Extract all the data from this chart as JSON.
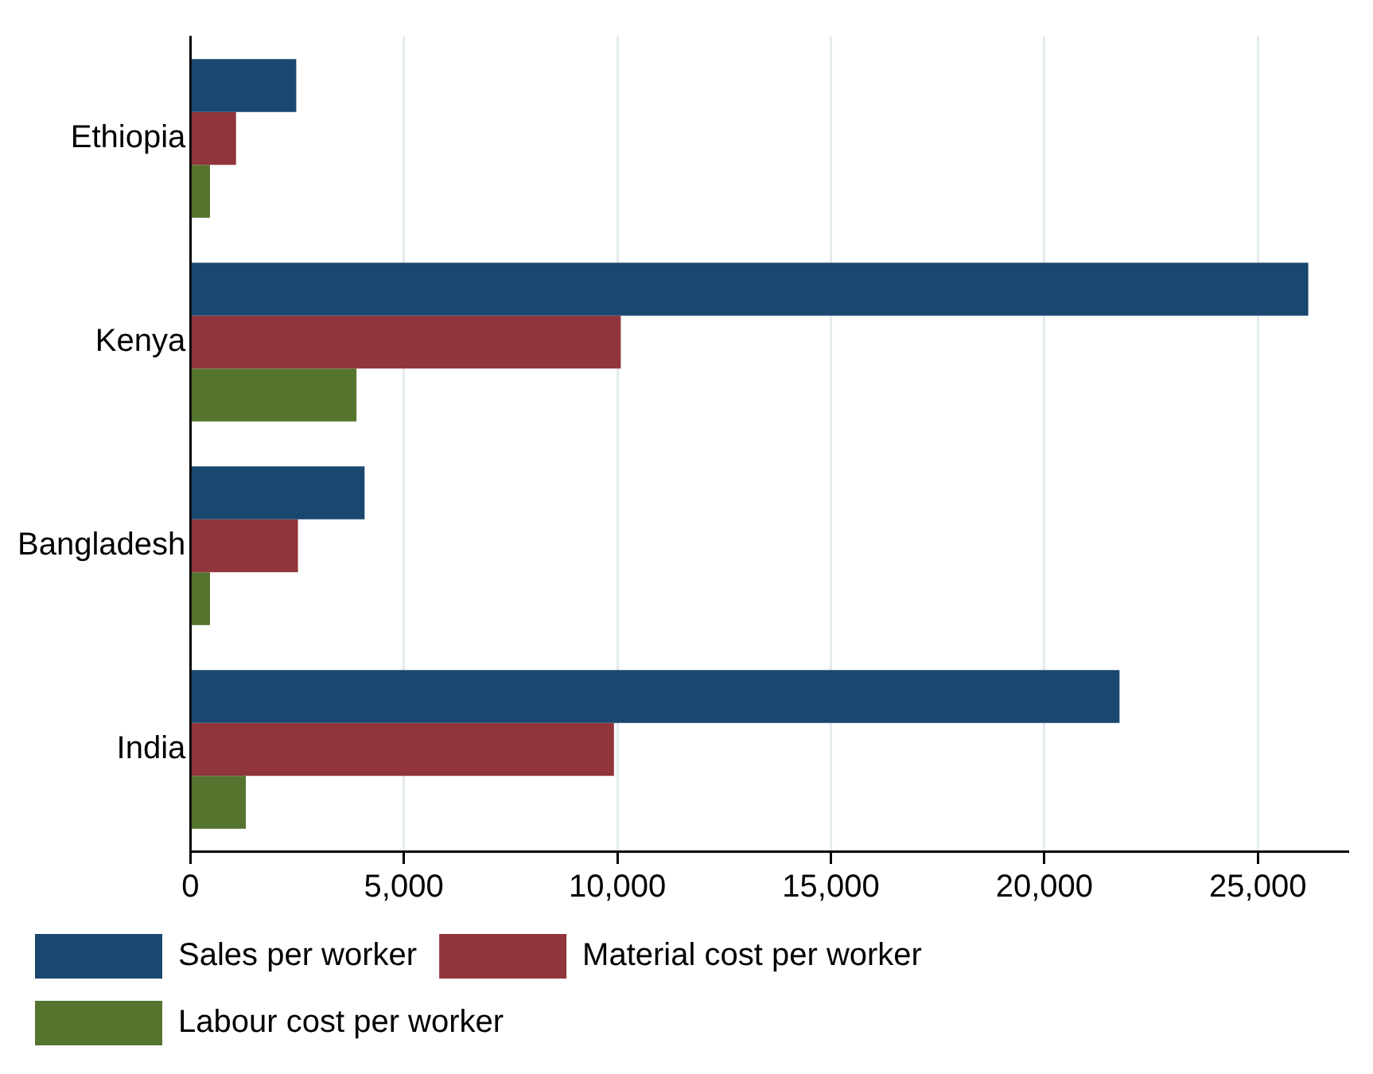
{
  "chart_data": {
    "type": "bar",
    "orientation": "horizontal",
    "categories": [
      "Ethiopia",
      "Kenya",
      "Bangladesh",
      "India"
    ],
    "series": [
      {
        "name": "Sales per worker",
        "color": "#1a476f",
        "values": [
          2480,
          26180,
          4080,
          21760
        ]
      },
      {
        "name": "Material cost per worker",
        "color": "#90353b",
        "values": [
          1070,
          10080,
          2520,
          9920
        ]
      },
      {
        "name": "Labour cost per worker",
        "color": "#55752f",
        "values": [
          460,
          3890,
          460,
          1300
        ]
      }
    ],
    "xlim": [
      0,
      27100
    ],
    "xticks": [
      {
        "value": 0,
        "label": "0"
      },
      {
        "value": 5000,
        "label": "5,000"
      },
      {
        "value": 10000,
        "label": "10,000"
      },
      {
        "value": 15000,
        "label": "15,000"
      },
      {
        "value": 20000,
        "label": "20,000"
      },
      {
        "value": 25000,
        "label": "25,000"
      }
    ],
    "grid": "x",
    "legend": "bottom"
  }
}
